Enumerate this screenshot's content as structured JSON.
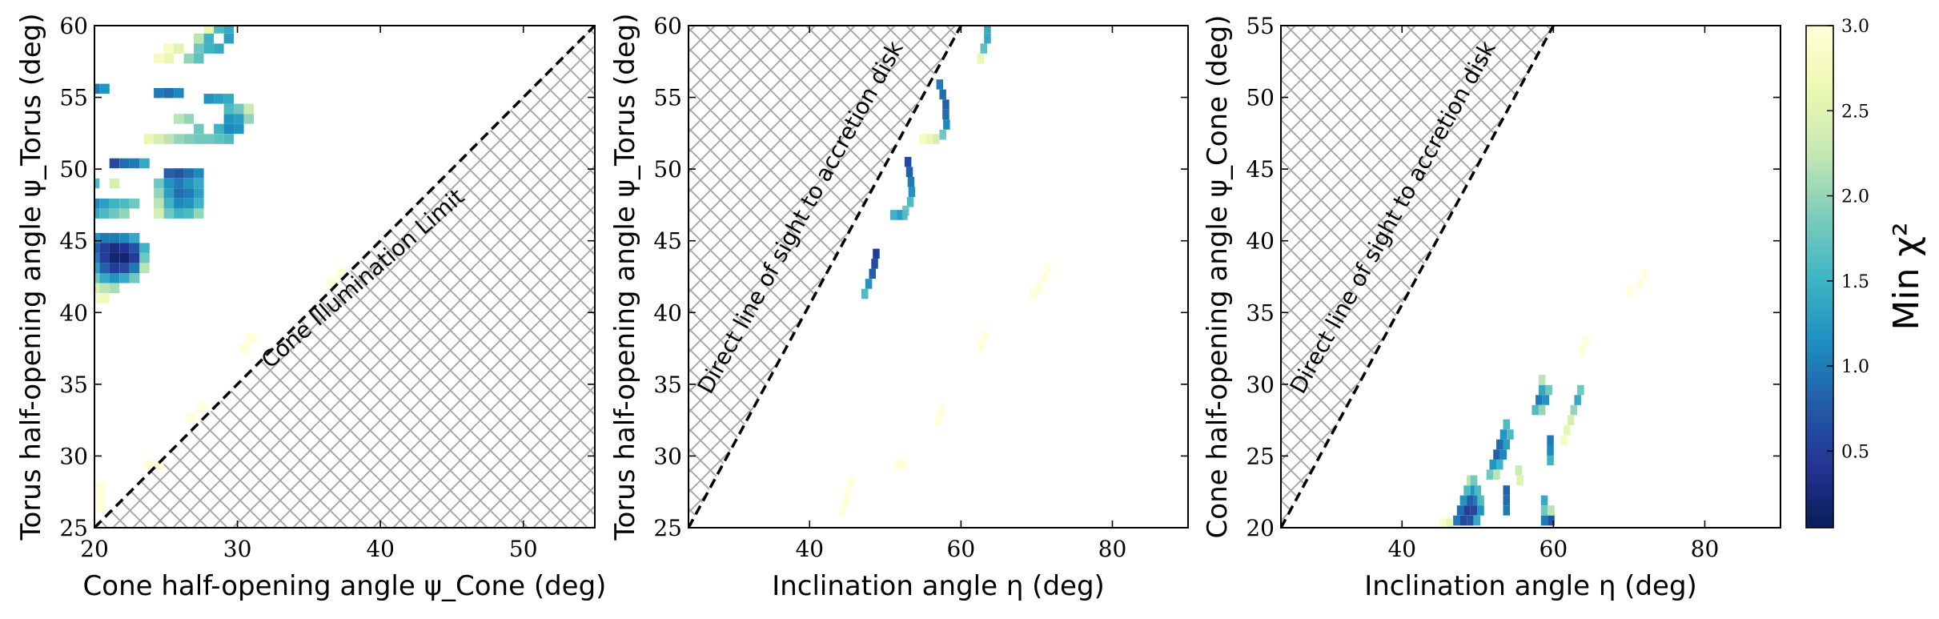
{
  "chart_data": [
    {
      "type": "heatmap",
      "xlabel": "Cone half-opening angle ψ_Cone (deg)",
      "ylabel": "Torus half-opening angle ψ_Torus (deg)",
      "xlim": [
        20,
        55
      ],
      "ylim": [
        25,
        60
      ],
      "xticks": [
        "20",
        "30",
        "40",
        "50"
      ],
      "yticks": [
        "25",
        "30",
        "35",
        "40",
        "45",
        "50",
        "55",
        "60"
      ],
      "x_tick_values": [
        20,
        30,
        40,
        50
      ],
      "y_tick_values": [
        25,
        30,
        35,
        40,
        45,
        50,
        55,
        60
      ],
      "cell_size": [
        0.7,
        0.7
      ],
      "exclusion_region": "below y = x (hatched)",
      "boundary_line": [
        [
          20,
          25
        ],
        [
          55,
          60
        ]
      ],
      "annotation": "Cone Illumination Limit",
      "cells": [
        [
          28,
          59.8,
          2.6
        ],
        [
          28.7,
          59.8,
          1.6
        ],
        [
          29.4,
          59.8,
          1.4
        ],
        [
          27.3,
          59.1,
          2.2
        ],
        [
          28,
          59.1,
          1.5
        ],
        [
          29.4,
          59.1,
          1.3
        ],
        [
          25.2,
          58.4,
          2.8
        ],
        [
          25.9,
          58.4,
          2.5
        ],
        [
          27.3,
          58.4,
          1.8
        ],
        [
          28,
          58.4,
          1.5
        ],
        [
          28.7,
          58.4,
          1.4
        ],
        [
          24.5,
          57.7,
          2.8
        ],
        [
          25.2,
          57.7,
          2.6
        ],
        [
          26.6,
          57.7,
          2.0
        ],
        [
          27.3,
          57.7,
          1.7
        ],
        [
          20,
          55.6,
          1.0
        ],
        [
          20.7,
          55.6,
          1.2
        ],
        [
          24.5,
          55.3,
          1.0
        ],
        [
          25.2,
          55.3,
          0.9
        ],
        [
          25.9,
          55.3,
          1.1
        ],
        [
          28,
          54.9,
          1.2
        ],
        [
          28.7,
          54.9,
          1.3
        ],
        [
          29.4,
          54.9,
          1.4
        ],
        [
          29.4,
          54.2,
          1.6
        ],
        [
          30.1,
          54.2,
          1.8
        ],
        [
          30.8,
          54.2,
          2.3
        ],
        [
          25.9,
          53.5,
          2.2
        ],
        [
          26.6,
          53.5,
          2.0
        ],
        [
          29.4,
          53.5,
          1.2
        ],
        [
          30.1,
          53.5,
          1.3
        ],
        [
          30.8,
          53.5,
          2.0
        ],
        [
          27.3,
          52.8,
          1.8
        ],
        [
          28.7,
          52.8,
          1.5
        ],
        [
          29.4,
          52.8,
          1.1
        ],
        [
          30.1,
          52.8,
          1.2
        ],
        [
          23.8,
          52.1,
          2.6
        ],
        [
          24.5,
          52.1,
          2.4
        ],
        [
          25.2,
          52.1,
          2.2
        ],
        [
          25.9,
          52.1,
          2.0
        ],
        [
          26.6,
          52.1,
          1.9
        ],
        [
          27.3,
          52.1,
          1.8
        ],
        [
          28,
          52.1,
          1.8
        ],
        [
          28.7,
          52.1,
          1.7
        ],
        [
          29.4,
          52.1,
          1.6
        ],
        [
          21.4,
          50.4,
          0.6
        ],
        [
          22.1,
          50.4,
          0.9
        ],
        [
          22.8,
          50.4,
          1.0
        ],
        [
          23.5,
          50.4,
          1.4
        ],
        [
          25.2,
          49.7,
          0.8
        ],
        [
          25.9,
          49.7,
          0.7
        ],
        [
          26.6,
          49.7,
          0.9
        ],
        [
          27.3,
          49.7,
          1.1
        ],
        [
          20,
          49.0,
          1.6
        ],
        [
          21.4,
          49.0,
          2.4
        ],
        [
          24.5,
          49.0,
          1.8
        ],
        [
          25.2,
          49.0,
          1.2
        ],
        [
          25.9,
          49.0,
          1.0
        ],
        [
          26.6,
          49.0,
          1.2
        ],
        [
          27.3,
          49.0,
          1.4
        ],
        [
          24.5,
          48.3,
          2.0
        ],
        [
          25.2,
          48.3,
          1.3
        ],
        [
          25.9,
          48.3,
          0.9
        ],
        [
          26.6,
          48.3,
          1.0
        ],
        [
          27.3,
          48.3,
          1.3
        ],
        [
          20,
          47.6,
          1.1
        ],
        [
          20.7,
          47.6,
          1.3
        ],
        [
          21.4,
          47.6,
          1.5
        ],
        [
          22.1,
          47.6,
          1.6
        ],
        [
          22.8,
          47.6,
          1.8
        ],
        [
          24.5,
          47.6,
          2.2
        ],
        [
          25.2,
          47.6,
          1.5
        ],
        [
          25.9,
          47.6,
          1.1
        ],
        [
          26.6,
          47.6,
          1.2
        ],
        [
          27.3,
          47.6,
          1.5
        ],
        [
          20,
          46.9,
          1.4
        ],
        [
          20.7,
          46.9,
          1.6
        ],
        [
          21.4,
          46.9,
          1.8
        ],
        [
          22.1,
          46.9,
          2.0
        ],
        [
          24.5,
          46.9,
          2.4
        ],
        [
          25.2,
          46.9,
          1.8
        ],
        [
          25.9,
          46.9,
          1.5
        ],
        [
          26.6,
          46.9,
          1.6
        ],
        [
          27.3,
          46.9,
          2.0
        ],
        [
          20,
          45.2,
          1.2
        ],
        [
          20.7,
          45.2,
          1.0
        ],
        [
          21.4,
          45.2,
          1.0
        ],
        [
          22.1,
          45.2,
          1.1
        ],
        [
          22.8,
          45.2,
          1.4
        ],
        [
          20,
          44.5,
          0.8
        ],
        [
          20.7,
          44.5,
          0.5
        ],
        [
          21.4,
          44.5,
          0.3
        ],
        [
          22.1,
          44.5,
          0.4
        ],
        [
          22.8,
          44.5,
          0.7
        ],
        [
          23.5,
          44.5,
          1.5
        ],
        [
          20,
          43.8,
          1.0
        ],
        [
          20.7,
          43.8,
          0.5
        ],
        [
          21.4,
          43.8,
          0.2
        ],
        [
          22.1,
          43.8,
          0.2
        ],
        [
          22.8,
          43.8,
          0.5
        ],
        [
          23.5,
          43.8,
          1.8
        ],
        [
          20,
          43.1,
          1.3
        ],
        [
          20.7,
          43.1,
          0.8
        ],
        [
          21.4,
          43.1,
          0.5
        ],
        [
          22.1,
          43.1,
          0.6
        ],
        [
          22.8,
          43.1,
          1.0
        ],
        [
          23.5,
          43.1,
          2.2
        ],
        [
          20,
          42.4,
          1.8
        ],
        [
          20.7,
          42.4,
          1.4
        ],
        [
          21.4,
          42.4,
          1.2
        ],
        [
          22.1,
          42.4,
          1.4
        ],
        [
          22.8,
          42.4,
          1.8
        ],
        [
          20,
          41.7,
          2.4
        ],
        [
          20.7,
          41.7,
          2.2
        ],
        [
          21.4,
          41.7,
          2.1
        ],
        [
          20,
          41.0,
          2.8
        ],
        [
          20.7,
          41.0,
          2.7
        ],
        [
          37.3,
          42.8,
          3.0
        ],
        [
          36.6,
          42.1,
          3.0
        ],
        [
          31.0,
          38.2,
          3.0
        ],
        [
          30.5,
          37.5,
          3.0
        ],
        [
          27.5,
          33.4,
          3.0
        ],
        [
          26.8,
          32.7,
          3.0
        ],
        [
          23.8,
          29.4,
          3.0
        ],
        [
          24.5,
          29.4,
          3.0
        ],
        [
          20.4,
          27.8,
          3.0
        ],
        [
          20.4,
          27.1,
          3.0
        ],
        [
          20.4,
          26.4,
          3.0
        ]
      ]
    },
    {
      "type": "heatmap",
      "xlabel": "Inclination angle η (deg)",
      "ylabel": "Torus half-opening angle ψ_Torus (deg)",
      "xlim": [
        24,
        90
      ],
      "ylim": [
        25,
        60
      ],
      "xticks": [
        "40",
        "60",
        "80"
      ],
      "yticks": [
        "25",
        "30",
        "35",
        "40",
        "45",
        "50",
        "55",
        "60"
      ],
      "x_tick_values": [
        40,
        60,
        80
      ],
      "y_tick_values": [
        25,
        30,
        35,
        40,
        45,
        50,
        55,
        60
      ],
      "cell_size": [
        0.9,
        0.7
      ],
      "exclusion_region": "above line (hatched)",
      "boundary_line": [
        [
          24,
          25
        ],
        [
          60,
          60
        ]
      ],
      "annotation": "Direct line of sight to accretion disk",
      "cells": [
        [
          63.5,
          59.8,
          1.4
        ],
        [
          63.5,
          59.1,
          1.4
        ],
        [
          63.0,
          58.4,
          1.7
        ],
        [
          62.6,
          57.7,
          2.6
        ],
        [
          57.2,
          55.9,
          1.0
        ],
        [
          57.6,
          55.2,
          0.9
        ],
        [
          58.0,
          54.5,
          0.8
        ],
        [
          58.0,
          53.8,
          0.9
        ],
        [
          58.1,
          53.1,
          1.1
        ],
        [
          57.6,
          52.4,
          1.8
        ],
        [
          56.7,
          52.1,
          2.4
        ],
        [
          55.8,
          52.1,
          2.6
        ],
        [
          54.9,
          52.1,
          2.8
        ],
        [
          53.0,
          50.5,
          0.6
        ],
        [
          53.2,
          49.8,
          0.8
        ],
        [
          53.4,
          49.1,
          1.0
        ],
        [
          53.5,
          48.4,
          1.2
        ],
        [
          53.3,
          47.7,
          1.6
        ],
        [
          52.7,
          47.1,
          1.8
        ],
        [
          52.5,
          46.8,
          1.6
        ],
        [
          51.8,
          46.8,
          1.3
        ],
        [
          51.1,
          46.8,
          1.5
        ],
        [
          48.8,
          44.1,
          0.5
        ],
        [
          48.6,
          43.4,
          0.6
        ],
        [
          48.3,
          42.7,
          0.8
        ],
        [
          47.8,
          42.0,
          1.2
        ],
        [
          47.3,
          41.3,
          1.6
        ],
        [
          71.5,
          43.1,
          3.0
        ],
        [
          71.0,
          42.4,
          3.0
        ],
        [
          70.2,
          41.7,
          3.0
        ],
        [
          69.5,
          41.3,
          3.0
        ],
        [
          63.2,
          38.4,
          3.0
        ],
        [
          62.7,
          37.7,
          3.0
        ],
        [
          57.5,
          33.2,
          3.0
        ],
        [
          57.0,
          32.5,
          3.0
        ],
        [
          51.6,
          29.4,
          3.0
        ],
        [
          52.5,
          29.4,
          3.0
        ],
        [
          45.5,
          28.2,
          3.0
        ],
        [
          45.1,
          27.5,
          3.0
        ],
        [
          44.7,
          26.8,
          3.0
        ],
        [
          44.3,
          26.1,
          3.0
        ]
      ]
    },
    {
      "type": "heatmap",
      "xlabel": "Inclination angle η (deg)",
      "ylabel": "Cone half-opening angle ψ_Cone (deg)",
      "xlim": [
        24,
        90
      ],
      "ylim": [
        20,
        55
      ],
      "xticks": [
        "40",
        "60",
        "80"
      ],
      "yticks": [
        "20",
        "25",
        "30",
        "35",
        "40",
        "45",
        "50",
        "55"
      ],
      "x_tick_values": [
        40,
        60,
        80
      ],
      "y_tick_values": [
        20,
        25,
        30,
        35,
        40,
        45,
        50,
        55
      ],
      "cell_size": [
        0.9,
        0.7
      ],
      "exclusion_region": "above line (hatched)",
      "boundary_line": [
        [
          24,
          20
        ],
        [
          60,
          55
        ]
      ],
      "annotation": "Direct line of sight to accretion disk",
      "cells": [
        [
          49.0,
          23.3,
          2.2
        ],
        [
          49.5,
          23.3,
          1.8
        ],
        [
          48.6,
          22.6,
          1.6
        ],
        [
          49.5,
          22.6,
          1.2
        ],
        [
          50.0,
          22.6,
          1.6
        ],
        [
          48.1,
          21.9,
          1.2
        ],
        [
          49.0,
          21.9,
          0.8
        ],
        [
          49.9,
          21.9,
          1.0
        ],
        [
          50.4,
          21.9,
          1.6
        ],
        [
          47.7,
          21.2,
          0.9
        ],
        [
          48.6,
          21.2,
          0.5
        ],
        [
          49.5,
          21.2,
          0.6
        ],
        [
          50.4,
          21.2,
          1.2
        ],
        [
          47.2,
          20.5,
          1.0
        ],
        [
          48.1,
          20.5,
          0.6
        ],
        [
          49.0,
          20.5,
          0.7
        ],
        [
          49.9,
          20.5,
          1.4
        ],
        [
          46.3,
          20.3,
          2.6
        ],
        [
          45.4,
          20.3,
          2.9
        ],
        [
          53.8,
          27.2,
          1.6
        ],
        [
          53.4,
          26.5,
          1.2
        ],
        [
          54.3,
          26.5,
          1.6
        ],
        [
          52.9,
          25.8,
          0.9
        ],
        [
          53.8,
          25.8,
          1.3
        ],
        [
          52.5,
          25.1,
          0.8
        ],
        [
          53.4,
          25.1,
          1.1
        ],
        [
          52.0,
          24.4,
          1.2
        ],
        [
          52.9,
          24.4,
          1.5
        ],
        [
          51.6,
          23.7,
          1.8
        ],
        [
          52.5,
          23.7,
          2.2
        ],
        [
          55.4,
          24.0,
          2.3
        ],
        [
          55.6,
          23.3,
          2.5
        ],
        [
          53.8,
          22.6,
          0.8
        ],
        [
          53.8,
          21.9,
          0.9
        ],
        [
          53.8,
          21.2,
          1.0
        ],
        [
          58.5,
          30.3,
          2.2
        ],
        [
          58.5,
          29.6,
          1.4
        ],
        [
          59.4,
          29.6,
          1.8
        ],
        [
          58.1,
          28.9,
          1.0
        ],
        [
          59.0,
          28.9,
          1.2
        ],
        [
          57.6,
          28.2,
          1.6
        ],
        [
          58.5,
          28.2,
          2.0
        ],
        [
          59.6,
          26.1,
          1.0
        ],
        [
          59.6,
          25.4,
          1.1
        ],
        [
          59.6,
          24.7,
          1.5
        ],
        [
          58.8,
          21.9,
          1.4
        ],
        [
          58.8,
          21.2,
          1.8
        ],
        [
          59.7,
          21.2,
          2.2
        ],
        [
          58.8,
          20.5,
          1.0
        ],
        [
          59.7,
          20.5,
          0.7
        ],
        [
          63.6,
          29.6,
          1.8
        ],
        [
          63.2,
          28.9,
          1.4
        ],
        [
          62.7,
          28.2,
          2.0
        ],
        [
          62.3,
          27.5,
          2.4
        ],
        [
          61.8,
          26.8,
          2.6
        ],
        [
          61.4,
          26.1,
          2.8
        ],
        [
          72.1,
          37.7,
          3.0
        ],
        [
          71.4,
          37.0,
          3.0
        ],
        [
          70.0,
          36.5,
          3.0
        ],
        [
          64.3,
          33.0,
          3.0
        ],
        [
          63.8,
          32.3,
          3.0
        ]
      ]
    }
  ],
  "colorbar": {
    "label": "Min χ²",
    "range": [
      0.05,
      3.0
    ],
    "ticks": [
      "0.5",
      "1.0",
      "1.5",
      "2.0",
      "2.5",
      "3.0"
    ],
    "tick_values": [
      0.5,
      1.0,
      1.5,
      2.0,
      2.5,
      3.0
    ],
    "colormap": [
      "#ffffd9",
      "#edf8b1",
      "#c7e9b4",
      "#7fcdbb",
      "#41b6c4",
      "#1d91c0",
      "#225ea8",
      "#253494",
      "#081d58"
    ]
  }
}
